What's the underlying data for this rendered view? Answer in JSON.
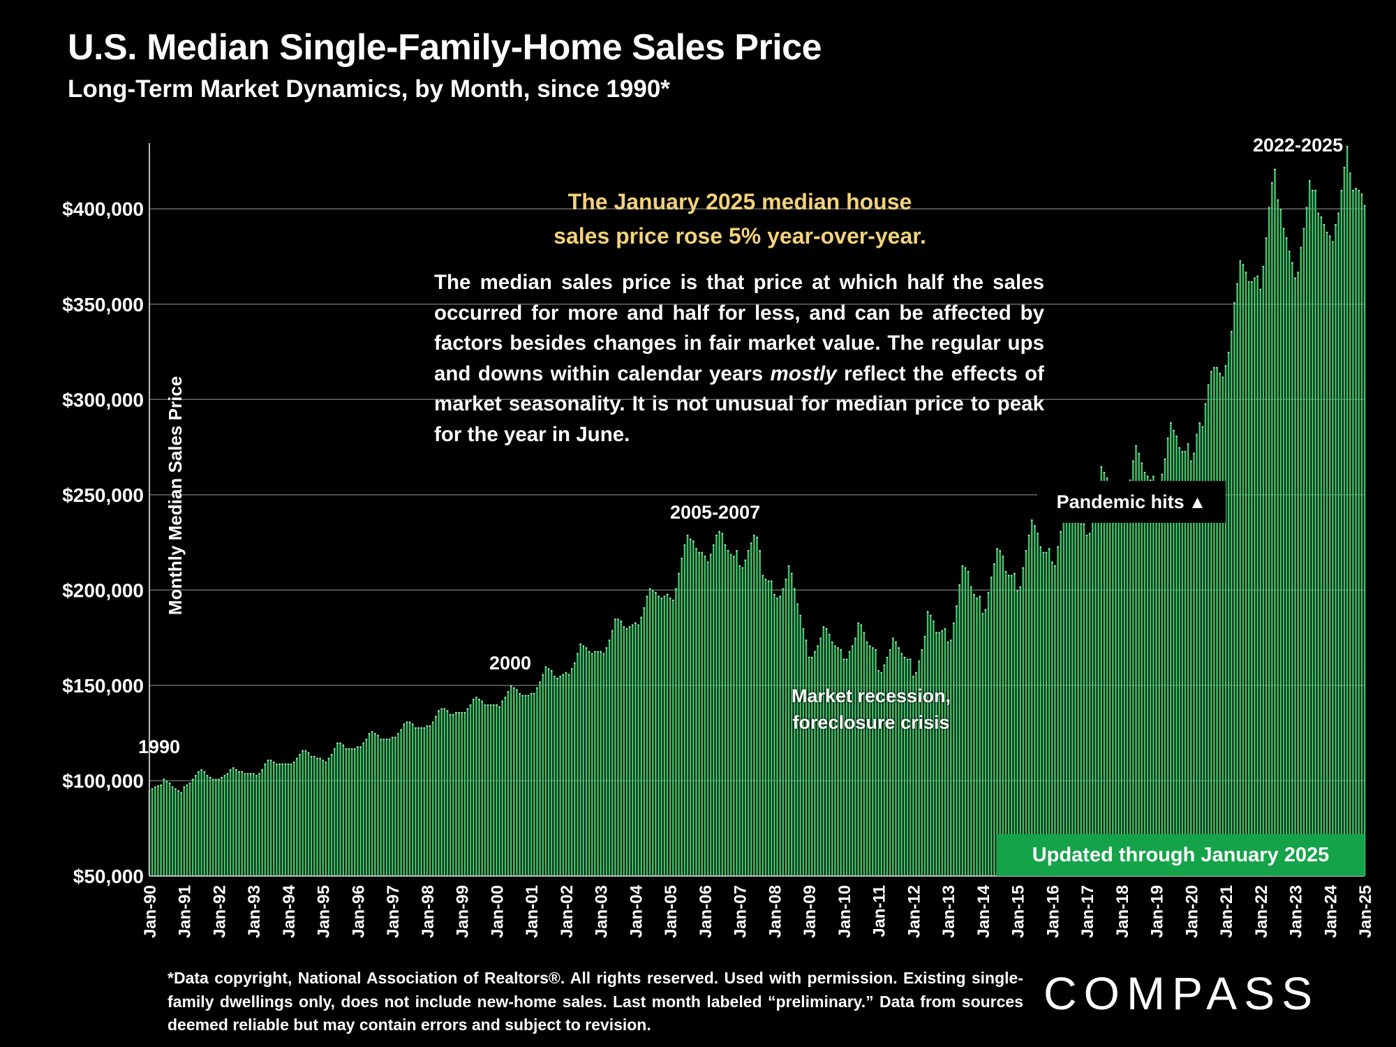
{
  "title": "U.S. Median Single-Family-Home Sales Price",
  "subtitle": "Long-Term Market Dynamics, by Month, since 1990*",
  "callout_line1": "The January 2025 median house",
  "callout_line2": "sales price rose 5% year-over-year.",
  "description": "The median sales price is that price at which half the sales occurred for more and half for less, and can be affected by factors besides changes in fair market value. The regular ups and downs within calendar years mostly reflect the effects of market seasonality. It is not unusual for median price to peak for the year in June.",
  "description_parts": {
    "before": "The median sales price is that price at which half the sales occurred for more and half for less, and can be affected by factors besides changes in fair market value. The regular ups and downs within calendar years ",
    "emphasis": "mostly",
    "after": " reflect the effects of market seasonality. It is not unusual for median price to peak for the year in June."
  },
  "annotations": {
    "y1990": "1990",
    "y2000": "2000",
    "y2005": "2005-2007",
    "y2022": "2022-2025",
    "recession_line1": "Market recession,",
    "recession_line2": "foreclosure crisis",
    "pandemic": "Pandemic hits",
    "pandemic_icon": "triangle-up-icon",
    "updated": "Updated through January 2025"
  },
  "footnote": "*Data copyright, National Association of Realtors®. All rights reserved. Used with permission. Existing single-family dwellings only, does not include new-home sales. Last month labeled “preliminary.” Data from sources deemed reliable but may contain errors and subject to revision.",
  "logo": "COMPASS",
  "colors": {
    "bar": "#3fbf6a",
    "bar_light": "#9ce8b3",
    "callout": "#f3d27a",
    "updated_bg": "#15a34a",
    "background": "#000000"
  },
  "chart_data": {
    "type": "bar",
    "ylabel": "Monthly Median Sales Price",
    "ylim": [
      50000,
      440000
    ],
    "yticks": [
      50000,
      100000,
      150000,
      200000,
      250000,
      300000,
      350000,
      400000
    ],
    "ytick_labels": [
      "$50,000",
      "$100,000",
      "$150,000",
      "$200,000",
      "$250,000",
      "$300,000",
      "$350,000",
      "$400,000"
    ],
    "x_labels": [
      "Jan-90",
      "Jan-91",
      "Jan-92",
      "Jan-93",
      "Jan-94",
      "Jan-95",
      "Jan-96",
      "Jan-97",
      "Jan-98",
      "Jan-99",
      "Jan-00",
      "Jan-01",
      "Jan-02",
      "Jan-03",
      "Jan-04",
      "Jan-05",
      "Jan-06",
      "Jan-07",
      "Jan-08",
      "Jan-09",
      "Jan-10",
      "Jan-11",
      "Jan-12",
      "Jan-13",
      "Jan-14",
      "Jan-15",
      "Jan-16",
      "Jan-17",
      "Jan-18",
      "Jan-19",
      "Jan-20",
      "Jan-21",
      "Jan-22",
      "Jan-23",
      "Jan-24",
      "Jan-25"
    ],
    "start_month": "Jan-90",
    "end_month": "Jan-25",
    "grid": true,
    "series": [
      {
        "name": "",
        "monthly_values": {
          "1990": [
            95000,
            96000,
            97000,
            97500,
            98000,
            101000,
            100000,
            99000,
            97000,
            96000,
            95000,
            94000
          ],
          "1991": [
            97000,
            98000,
            99000,
            101000,
            103000,
            105000,
            106000,
            105000,
            103000,
            102000,
            101000,
            101000
          ],
          "1992": [
            101000,
            102000,
            103000,
            104000,
            106000,
            107000,
            106000,
            105000,
            105000,
            104000,
            104000,
            104000
          ],
          "1993": [
            104000,
            103000,
            104000,
            106000,
            109000,
            111000,
            111000,
            110000,
            109000,
            109000,
            109000,
            109000
          ],
          "1994": [
            109000,
            109000,
            110000,
            112000,
            114000,
            116000,
            116000,
            115000,
            113000,
            113000,
            112000,
            112000
          ],
          "1995": [
            111000,
            110000,
            112000,
            114000,
            117000,
            120000,
            120000,
            119000,
            117000,
            117000,
            117000,
            117000
          ],
          "1996": [
            118000,
            118000,
            120000,
            122000,
            125000,
            126000,
            125000,
            124000,
            122000,
            122000,
            122000,
            122000
          ],
          "1997": [
            123000,
            123000,
            125000,
            127000,
            130000,
            131000,
            131000,
            130000,
            128000,
            128000,
            128000,
            128000
          ],
          "1998": [
            129000,
            129000,
            131000,
            134000,
            137000,
            138000,
            138000,
            137000,
            135000,
            135000,
            136000,
            136000
          ],
          "1999": [
            136000,
            136000,
            138000,
            140000,
            143000,
            144000,
            143000,
            142000,
            140000,
            140000,
            140000,
            140000
          ],
          "2000": [
            140000,
            139000,
            142000,
            144000,
            147000,
            150000,
            149000,
            148000,
            146000,
            145000,
            145000,
            145000
          ],
          "2001": [
            146000,
            146000,
            149000,
            152000,
            156000,
            160000,
            159000,
            158000,
            155000,
            154000,
            155000,
            156000
          ],
          "2002": [
            157000,
            156000,
            159000,
            162000,
            167000,
            172000,
            171000,
            170000,
            168000,
            167000,
            168000,
            168000
          ],
          "2003": [
            168000,
            167000,
            170000,
            174000,
            179000,
            185000,
            185000,
            184000,
            181000,
            180000,
            181000,
            182000
          ],
          "2004": [
            183000,
            182000,
            186000,
            191000,
            197000,
            201000,
            200000,
            199000,
            197000,
            196000,
            197000,
            198000
          ],
          "2005": [
            196000,
            195000,
            201000,
            209000,
            217000,
            224000,
            229000,
            227000,
            226000,
            222000,
            220000,
            220000
          ],
          "2006": [
            218000,
            215000,
            219000,
            224000,
            229000,
            231000,
            230000,
            224000,
            221000,
            219000,
            218000,
            221000
          ],
          "2007": [
            213000,
            212000,
            216000,
            221000,
            225000,
            229000,
            228000,
            221000,
            208000,
            206000,
            205000,
            205000
          ],
          "2008": [
            198000,
            196000,
            197000,
            201000,
            206000,
            213000,
            209000,
            201000,
            193000,
            187000,
            180000,
            174000
          ],
          "2009": [
            165000,
            165000,
            168000,
            171000,
            175000,
            181000,
            180000,
            177000,
            173000,
            171000,
            170000,
            169000
          ],
          "2010": [
            164000,
            164000,
            168000,
            171000,
            175000,
            183000,
            182000,
            178000,
            173000,
            171000,
            170000,
            169000
          ],
          "2011": [
            158000,
            157000,
            161000,
            165000,
            169000,
            175000,
            173000,
            170000,
            167000,
            165000,
            164000,
            164000
          ],
          "2012": [
            155000,
            157000,
            163000,
            169000,
            176000,
            189000,
            187000,
            184000,
            178000,
            178000,
            179000,
            180000
          ],
          "2013": [
            173000,
            174000,
            183000,
            192000,
            203000,
            213000,
            212000,
            210000,
            202000,
            198000,
            196000,
            197000
          ],
          "2014": [
            188000,
            190000,
            199000,
            207000,
            214000,
            222000,
            221000,
            218000,
            210000,
            208000,
            208000,
            209000
          ],
          "2015": [
            200000,
            202000,
            212000,
            221000,
            229000,
            237000,
            234000,
            230000,
            223000,
            220000,
            220000,
            222000
          ],
          "2016": [
            215000,
            213000,
            223000,
            231000,
            238000,
            247000,
            245000,
            242000,
            237000,
            236000,
            235000,
            235000
          ],
          "2017": [
            229000,
            230000,
            237000,
            244000,
            253000,
            265000,
            262000,
            259000,
            252000,
            250000,
            248000,
            248000
          ],
          "2018": [
            240000,
            241000,
            250000,
            258000,
            268000,
            276000,
            272000,
            267000,
            262000,
            260000,
            258000,
            260000
          ],
          "2019": [
            250000,
            252000,
            261000,
            269000,
            280000,
            288000,
            284000,
            281000,
            275000,
            273000,
            273000,
            277000
          ],
          "2020": [
            268000,
            272000,
            282000,
            288000,
            286000,
            298000,
            308000,
            315000,
            317000,
            317000,
            314000,
            312000
          ],
          "2021": [
            318000,
            325000,
            336000,
            351000,
            361000,
            373000,
            371000,
            367000,
            362000,
            362000,
            364000,
            365000
          ],
          "2022": [
            358000,
            370000,
            385000,
            401000,
            414000,
            421000,
            405000,
            400000,
            390000,
            385000,
            378000,
            372000
          ],
          "2023": [
            364000,
            367000,
            380000,
            390000,
            401000,
            415000,
            410000,
            410000,
            398000,
            396000,
            392000,
            388000
          ],
          "2024": [
            386000,
            383000,
            392000,
            398000,
            410000,
            422000,
            433000,
            419000,
            410000,
            411000,
            410000,
            408000
          ],
          "2025": [
            402000
          ]
        }
      }
    ]
  }
}
